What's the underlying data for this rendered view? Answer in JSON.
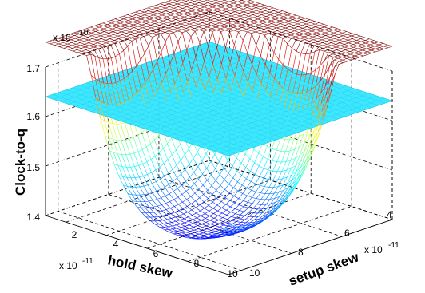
{
  "chart_data": {
    "type": "surface3d",
    "xlabel": "hold skew",
    "ylabel": "setup skew",
    "zlabel": "Clock-to-q",
    "x_multiplier": "x 10",
    "x_exponent": "-11",
    "y_multiplier": "x 10",
    "y_exponent": "-11",
    "z_multiplier": "x 10",
    "z_exponent": "-10",
    "xlim": [
      1,
      10
    ],
    "ylim": [
      3.5,
      10
    ],
    "zlim": [
      1.4,
      1.7
    ],
    "x_ticks": [
      2,
      4,
      6,
      8,
      10
    ],
    "y_ticks": [
      4,
      6,
      8,
      10
    ],
    "z_ticks": [
      1.4,
      1.5,
      1.6,
      1.7
    ],
    "x_tick_labels": [
      "2",
      "4",
      "6",
      "8",
      "10"
    ],
    "y_tick_labels": [
      "4",
      "6",
      "8",
      "10"
    ],
    "z_tick_labels": [
      "1.4",
      "1.5",
      "1.6",
      "1.7"
    ],
    "grid": true,
    "colormap": "jet",
    "plane": {
      "z": 1.64,
      "color": "#33e6ff"
    },
    "surface": {
      "description_model": "bowl",
      "min_z": 1.44,
      "min_at": {
        "x": 7.5,
        "y": 4.5
      },
      "grid_resolution": 40
    }
  }
}
